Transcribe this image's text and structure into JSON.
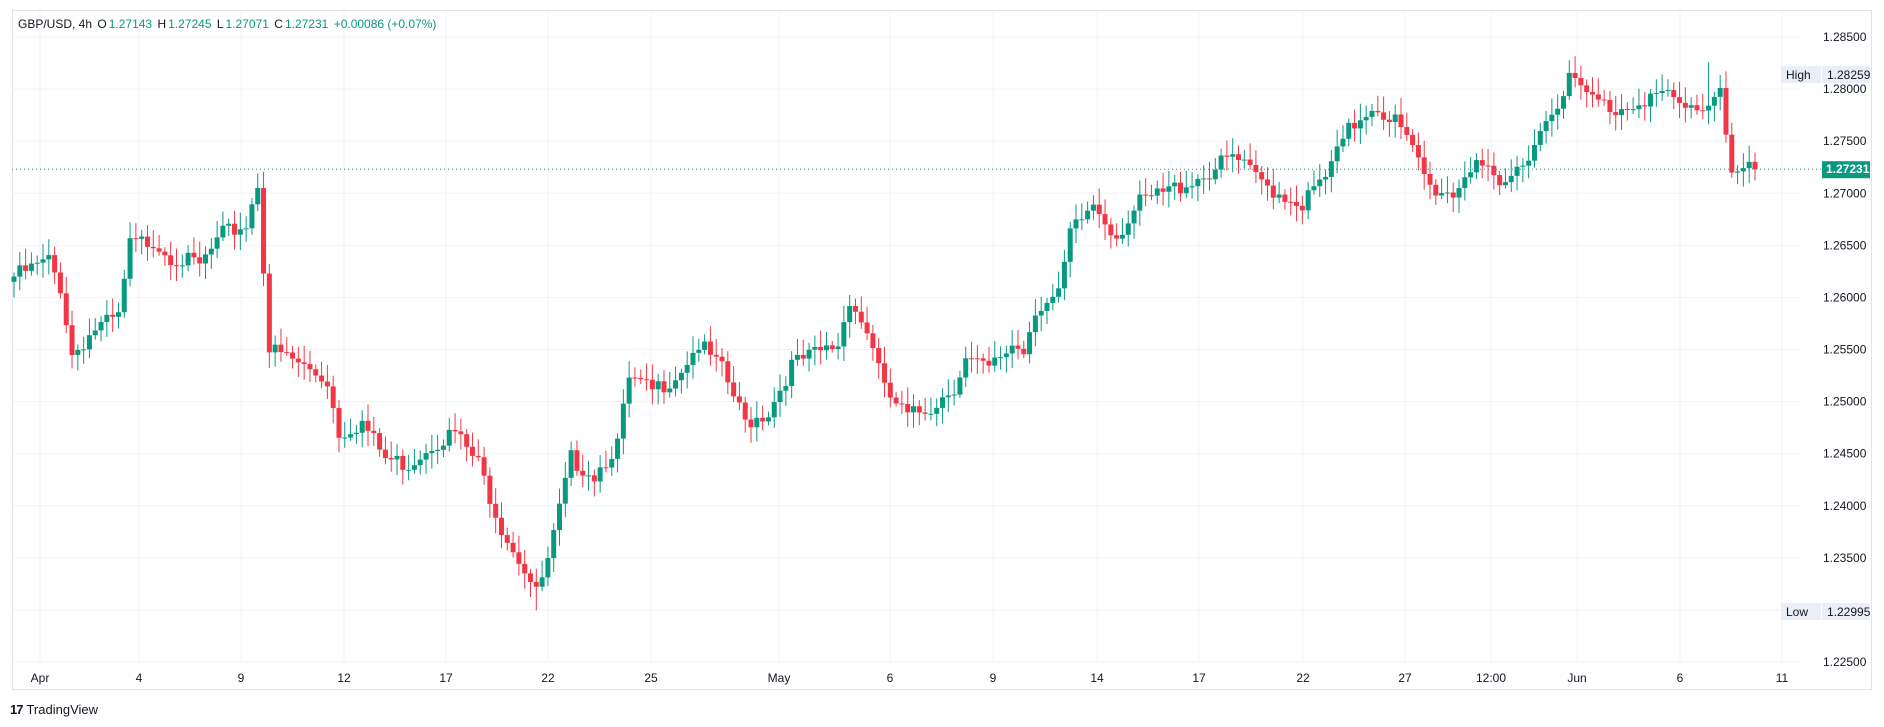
{
  "header": {
    "symbol": "GBP/USD, 4h",
    "open_label": "O",
    "open": "1.27143",
    "high_label": "H",
    "high": "1.27245",
    "low_label": "L",
    "low": "1.27071",
    "close_label": "C",
    "close": "1.27231",
    "change": "+0.00086 (+0.07%)"
  },
  "badges": {
    "high_label": "High",
    "high_value": "1.28259",
    "low_label": "Low",
    "low_value": "1.22995",
    "last_value": "1.27231"
  },
  "footer": {
    "logo": "17",
    "brand": "TradingView"
  },
  "colors": {
    "up": "#089981",
    "down": "#f23645",
    "grid": "#f0f3fa",
    "text": "#131722"
  },
  "chart_data": {
    "type": "candlestick",
    "title": "GBP/USD, 4h",
    "ylim": [
      1.225,
      1.2875
    ],
    "y_ticks": [
      "1.28500",
      "1.28000",
      "1.27500",
      "1.27000",
      "1.26500",
      "1.26000",
      "1.25500",
      "1.25000",
      "1.24500",
      "1.24000",
      "1.23500",
      "1.23000",
      "1.22500"
    ],
    "x_ticks": [
      "Apr",
      "4",
      "9",
      "12",
      "17",
      "22",
      "25",
      "May",
      "6",
      "9",
      "14",
      "17",
      "22",
      "27",
      "12:00",
      "Jun",
      "6",
      "11"
    ],
    "last_price": 1.27231,
    "period_high": 1.28259,
    "period_low": 1.22995,
    "anchors": [
      [
        0,
        1.262
      ],
      [
        6,
        1.2635
      ],
      [
        8,
        1.261
      ],
      [
        10,
        1.2545
      ],
      [
        14,
        1.257
      ],
      [
        18,
        1.258
      ],
      [
        20,
        1.265
      ],
      [
        24,
        1.2655
      ],
      [
        27,
        1.264
      ],
      [
        32,
        1.263
      ],
      [
        36,
        1.266
      ],
      [
        40,
        1.267
      ],
      [
        42,
        1.271
      ],
      [
        44,
        1.255
      ],
      [
        48,
        1.254
      ],
      [
        54,
        1.252
      ],
      [
        56,
        1.247
      ],
      [
        60,
        1.248
      ],
      [
        64,
        1.2445
      ],
      [
        68,
        1.244
      ],
      [
        72,
        1.246
      ],
      [
        76,
        1.247
      ],
      [
        80,
        1.244
      ],
      [
        84,
        1.238
      ],
      [
        88,
        1.234
      ],
      [
        90,
        1.2315
      ],
      [
        92,
        1.2345
      ],
      [
        96,
        1.2445
      ],
      [
        100,
        1.243
      ],
      [
        104,
        1.246
      ],
      [
        106,
        1.252
      ],
      [
        110,
        1.251
      ],
      [
        114,
        1.2525
      ],
      [
        118,
        1.2555
      ],
      [
        122,
        1.253
      ],
      [
        126,
        1.248
      ],
      [
        130,
        1.249
      ],
      [
        134,
        1.2535
      ],
      [
        138,
        1.2545
      ],
      [
        142,
        1.2555
      ],
      [
        144,
        1.26
      ],
      [
        148,
        1.2555
      ],
      [
        150,
        1.251
      ],
      [
        154,
        1.2485
      ],
      [
        158,
        1.2495
      ],
      [
        162,
        1.2515
      ],
      [
        164,
        1.254
      ],
      [
        168,
        1.253
      ],
      [
        172,
        1.2555
      ],
      [
        174,
        1.255
      ],
      [
        176,
        1.259
      ],
      [
        180,
        1.26
      ],
      [
        182,
        1.266
      ],
      [
        186,
        1.269
      ],
      [
        190,
        1.266
      ],
      [
        194,
        1.269
      ],
      [
        198,
        1.27
      ],
      [
        202,
        1.271
      ],
      [
        206,
        1.272
      ],
      [
        210,
        1.2735
      ],
      [
        214,
        1.2715
      ],
      [
        218,
        1.27
      ],
      [
        222,
        1.269
      ],
      [
        226,
        1.2715
      ],
      [
        230,
        1.276
      ],
      [
        234,
        1.2785
      ],
      [
        238,
        1.277
      ],
      [
        242,
        1.273
      ],
      [
        244,
        1.2705
      ],
      [
        248,
        1.27
      ],
      [
        252,
        1.2735
      ],
      [
        256,
        1.27
      ],
      [
        260,
        1.273
      ],
      [
        262,
        1.275
      ],
      [
        266,
        1.279
      ],
      [
        268,
        1.281
      ],
      [
        272,
        1.279
      ],
      [
        276,
        1.278
      ],
      [
        280,
        1.279
      ],
      [
        284,
        1.2795
      ],
      [
        288,
        1.278
      ],
      [
        292,
        1.2785
      ],
      [
        294,
        1.2805
      ],
      [
        296,
        1.272
      ],
      [
        300,
        1.2723
      ]
    ]
  }
}
